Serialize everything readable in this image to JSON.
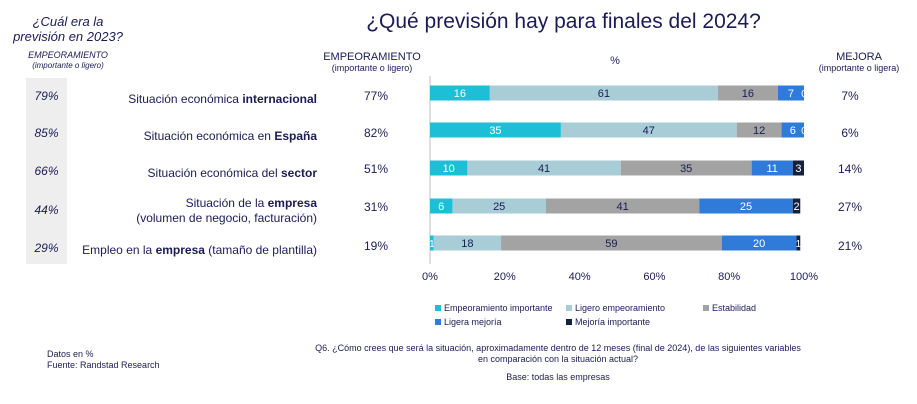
{
  "title": "¿Qué previsión hay para finales del 2024?",
  "left_header": {
    "line1": "¿Cuál era la",
    "line2": "previsión en 2023?",
    "line3": "EMPEORAMIENTO",
    "line4": "(importante o ligero)"
  },
  "col_headers": {
    "worse": "EMPEORAMIENTO",
    "worse_sub": "(importante o ligero)",
    "pct": "%",
    "better": "MEJORA",
    "better_sub": "(importante o ligera)"
  },
  "rows": [
    {
      "prev2023": "79%",
      "label_pre": "Situación económica ",
      "label_bold": "internacional",
      "label_post": "",
      "label_line2": "",
      "worse": "77%",
      "better": "7%"
    },
    {
      "prev2023": "85%",
      "label_pre": "Situación económica en ",
      "label_bold": "España",
      "label_post": "",
      "label_line2": "",
      "worse": "82%",
      "better": "6%"
    },
    {
      "prev2023": "66%",
      "label_pre": "Situación económica del ",
      "label_bold": "sector",
      "label_post": "",
      "label_line2": "",
      "worse": "51%",
      "better": "14%"
    },
    {
      "prev2023": "44%",
      "label_pre": "Situación de la ",
      "label_bold": "empresa",
      "label_post": "",
      "label_line2": "(volumen de negocio, facturación)",
      "worse": "31%",
      "better": "27%"
    },
    {
      "prev2023": "29%",
      "label_pre": "Empleo en la ",
      "label_bold": "empresa",
      "label_post": " (tamaño de plantilla)",
      "label_line2": "",
      "worse": "19%",
      "better": "21%"
    }
  ],
  "chart_data": {
    "type": "bar",
    "orientation": "horizontal",
    "stacked": true,
    "percent": true,
    "categories": [
      "Situación económica internacional",
      "Situación económica en España",
      "Situación económica del sector",
      "Situación de la empresa (volumen de negocio, facturación)",
      "Empleo en la empresa (tamaño de plantilla)"
    ],
    "series": [
      {
        "name": "Empeoramiento importante",
        "color": "#1ebfd6",
        "values": [
          16,
          35,
          10,
          6,
          1
        ]
      },
      {
        "name": "Ligero empeoramiento",
        "color": "#a8cdd7",
        "values": [
          61,
          47,
          41,
          25,
          18
        ]
      },
      {
        "name": "Estabilidad",
        "color": "#a3a3a3",
        "values": [
          16,
          12,
          35,
          41,
          59
        ]
      },
      {
        "name": "Ligera mejoría",
        "color": "#2f7bd9",
        "values": [
          7,
          6,
          11,
          25,
          20
        ]
      },
      {
        "name": "Mejoría importante",
        "color": "#14213d",
        "values": [
          0,
          0,
          3,
          2,
          1
        ]
      }
    ],
    "xlim": [
      0,
      100
    ],
    "xticks": [
      "0%",
      "20%",
      "40%",
      "60%",
      "80%",
      "100%"
    ],
    "xlabel": "%",
    "legend_position": "bottom"
  },
  "footer": {
    "question_line1": "Q6. ¿Cómo crees que será la situación, aproximadamente dentro de 12 meses (final de 2024), de las siguientes variables",
    "question_line2": "en comparación con la situación actual?",
    "base": "Base: todas las empresas",
    "data_note": "Datos en %",
    "source": "Fuente: Randstad Research"
  }
}
